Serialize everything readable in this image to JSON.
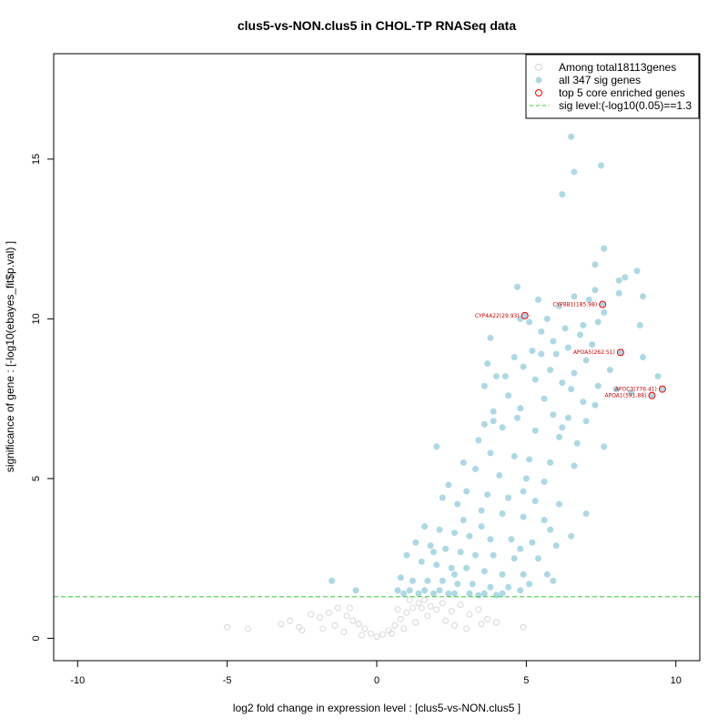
{
  "chart_data": {
    "type": "scatter",
    "title": "clus5-vs-NON.clus5 in CHOL-TP RNASeq data",
    "xlabel": "log2 fold change in expression level : [clus5-vs-NON.clus5 ]",
    "ylabel": "significance of gene : [-log10(ebayes_fit$p.val) ]",
    "xlim": [
      -10.8,
      10.8
    ],
    "ylim": [
      -0.7,
      18.3
    ],
    "xticks": [
      -10,
      -5,
      0,
      5,
      10
    ],
    "yticks": [
      0,
      5,
      10,
      15
    ],
    "sig_level": 1.3,
    "colors": {
      "total": "#d3d3d3",
      "sig": "#add8e6",
      "top": "#ff0000",
      "line": "#33cc33",
      "gene_label": "#cc0000"
    },
    "legend": {
      "position": "top-right",
      "entries": [
        "Among total18113genes",
        "all 347 sig genes",
        "top 5 core enriched genes",
        "sig level:(-log10(0.05)==1.3"
      ]
    },
    "series": [
      {
        "name": "all 347 sig genes",
        "points": [
          [
            6.5,
            15.7
          ],
          [
            7.5,
            14.8
          ],
          [
            6.6,
            14.6
          ],
          [
            6.2,
            13.9
          ],
          [
            7.6,
            12.2
          ],
          [
            7.3,
            11.7
          ],
          [
            8.7,
            11.5
          ],
          [
            8.3,
            11.3
          ],
          [
            8.1,
            11.2
          ],
          [
            4.7,
            11.0
          ],
          [
            7.3,
            10.9
          ],
          [
            8.1,
            10.8
          ],
          [
            5.4,
            10.6
          ],
          [
            6.6,
            10.7
          ],
          [
            7.1,
            10.6
          ],
          [
            8.9,
            10.7
          ],
          [
            6.1,
            10.4
          ],
          [
            7.6,
            10.2
          ],
          [
            5.7,
            10.0
          ],
          [
            8.8,
            9.8
          ],
          [
            7.4,
            9.9
          ],
          [
            6.9,
            9.8
          ],
          [
            6.3,
            9.7
          ],
          [
            5.1,
            9.9
          ],
          [
            4.8,
            10.0
          ],
          [
            5.5,
            9.6
          ],
          [
            6.8,
            9.5
          ],
          [
            3.8,
            9.4
          ],
          [
            5.9,
            9.3
          ],
          [
            7.2,
            9.2
          ],
          [
            6.4,
            9.1
          ],
          [
            5.2,
            9.0
          ],
          [
            4.6,
            8.8
          ],
          [
            6.0,
            8.9
          ],
          [
            7.0,
            8.7
          ],
          [
            8.9,
            8.8
          ],
          [
            3.7,
            8.6
          ],
          [
            4.9,
            8.5
          ],
          [
            5.8,
            8.4
          ],
          [
            6.6,
            8.3
          ],
          [
            7.8,
            8.4
          ],
          [
            9.4,
            8.2
          ],
          [
            4.0,
            8.2
          ],
          [
            5.3,
            8.1
          ],
          [
            6.2,
            8.0
          ],
          [
            7.4,
            7.9
          ],
          [
            8.5,
            7.7
          ],
          [
            3.6,
            7.9
          ],
          [
            4.4,
            7.6
          ],
          [
            5.6,
            7.5
          ],
          [
            6.9,
            7.4
          ],
          [
            7.3,
            7.3
          ],
          [
            8.0,
            7.8
          ],
          [
            4.8,
            7.2
          ],
          [
            5.9,
            7.0
          ],
          [
            6.4,
            6.9
          ],
          [
            7.0,
            6.8
          ],
          [
            3.9,
            6.8
          ],
          [
            4.2,
            6.6
          ],
          [
            5.3,
            6.5
          ],
          [
            6.1,
            6.3
          ],
          [
            6.7,
            6.1
          ],
          [
            7.6,
            6.0
          ],
          [
            3.4,
            6.2
          ],
          [
            2.0,
            6.0
          ],
          [
            3.8,
            5.8
          ],
          [
            4.6,
            5.7
          ],
          [
            5.1,
            5.6
          ],
          [
            5.8,
            5.5
          ],
          [
            6.6,
            5.4
          ],
          [
            2.9,
            5.5
          ],
          [
            3.3,
            5.3
          ],
          [
            4.1,
            5.1
          ],
          [
            5.0,
            5.0
          ],
          [
            5.6,
            4.9
          ],
          [
            2.4,
            4.8
          ],
          [
            3.0,
            4.6
          ],
          [
            3.7,
            4.5
          ],
          [
            4.4,
            4.4
          ],
          [
            5.3,
            4.3
          ],
          [
            6.1,
            4.2
          ],
          [
            2.2,
            4.4
          ],
          [
            2.7,
            4.2
          ],
          [
            3.5,
            4.0
          ],
          [
            4.2,
            3.9
          ],
          [
            4.9,
            3.8
          ],
          [
            5.6,
            3.7
          ],
          [
            7.0,
            3.9
          ],
          [
            1.6,
            3.5
          ],
          [
            2.1,
            3.4
          ],
          [
            2.6,
            3.3
          ],
          [
            3.1,
            3.2
          ],
          [
            3.8,
            3.1
          ],
          [
            4.5,
            3.1
          ],
          [
            5.2,
            3.0
          ],
          [
            6.0,
            2.9
          ],
          [
            6.5,
            3.2
          ],
          [
            1.3,
            3.0
          ],
          [
            1.8,
            2.9
          ],
          [
            2.3,
            2.8
          ],
          [
            2.8,
            2.7
          ],
          [
            3.3,
            2.6
          ],
          [
            3.9,
            2.6
          ],
          [
            4.6,
            2.5
          ],
          [
            5.4,
            2.5
          ],
          [
            1.0,
            2.6
          ],
          [
            1.5,
            2.4
          ],
          [
            2.0,
            2.3
          ],
          [
            2.5,
            2.2
          ],
          [
            3.0,
            2.2
          ],
          [
            3.6,
            2.1
          ],
          [
            4.2,
            2.0
          ],
          [
            4.9,
            2.0
          ],
          [
            5.7,
            2.0
          ],
          [
            0.8,
            1.9
          ],
          [
            1.2,
            1.8
          ],
          [
            1.7,
            1.8
          ],
          [
            2.2,
            1.8
          ],
          [
            2.7,
            1.7
          ],
          [
            3.2,
            1.7
          ],
          [
            3.8,
            1.6
          ],
          [
            4.4,
            1.6
          ],
          [
            5.1,
            1.7
          ],
          [
            5.9,
            1.8
          ],
          [
            0.7,
            1.5
          ],
          [
            1.1,
            1.5
          ],
          [
            1.6,
            1.5
          ],
          [
            2.1,
            1.5
          ],
          [
            2.6,
            1.4
          ],
          [
            3.1,
            1.4
          ],
          [
            3.6,
            1.4
          ],
          [
            4.2,
            1.4
          ],
          [
            4.8,
            1.5
          ],
          [
            0.9,
            1.4
          ],
          [
            1.4,
            1.4
          ],
          [
            1.9,
            1.4
          ],
          [
            2.4,
            1.4
          ],
          [
            3.4,
            1.35
          ],
          [
            4.0,
            1.35
          ],
          [
            -1.5,
            1.8
          ],
          [
            -0.7,
            1.5
          ],
          [
            3.9,
            7.1
          ],
          [
            4.7,
            6.9
          ],
          [
            6.5,
            7.8
          ],
          [
            6.2,
            6.6
          ],
          [
            5.5,
            8.9
          ],
          [
            4.3,
            8.2
          ],
          [
            3.6,
            6.7
          ],
          [
            4.9,
            4.6
          ],
          [
            5.8,
            3.4
          ],
          [
            2.9,
            3.7
          ],
          [
            1.9,
            2.7
          ],
          [
            2.6,
            2.0
          ],
          [
            3.5,
            3.5
          ],
          [
            4.8,
            2.8
          ]
        ]
      },
      {
        "name": "Among total18113genes",
        "points": [
          [
            -5.0,
            0.35
          ],
          [
            -4.3,
            0.3
          ],
          [
            -3.2,
            0.45
          ],
          [
            -2.9,
            0.55
          ],
          [
            -2.5,
            0.25
          ],
          [
            -2.2,
            0.75
          ],
          [
            -1.9,
            0.65
          ],
          [
            -1.6,
            0.8
          ],
          [
            -1.3,
            0.95
          ],
          [
            -1.0,
            0.7
          ],
          [
            -0.8,
            0.55
          ],
          [
            -0.6,
            0.45
          ],
          [
            -0.4,
            0.3
          ],
          [
            -0.2,
            0.15
          ],
          [
            0.0,
            0.05
          ],
          [
            0.2,
            0.12
          ],
          [
            0.4,
            0.25
          ],
          [
            0.6,
            0.4
          ],
          [
            0.8,
            0.6
          ],
          [
            1.0,
            0.8
          ],
          [
            1.2,
            0.95
          ],
          [
            1.4,
            1.1
          ],
          [
            1.6,
            1.2
          ],
          [
            1.8,
            1.0
          ],
          [
            2.0,
            0.9
          ],
          [
            2.2,
            1.1
          ],
          [
            2.5,
            0.85
          ],
          [
            2.8,
            1.05
          ],
          [
            3.1,
            0.75
          ],
          [
            3.4,
            0.9
          ],
          [
            3.7,
            0.6
          ],
          [
            4.0,
            0.5
          ],
          [
            4.9,
            0.35
          ],
          [
            -1.8,
            0.3
          ],
          [
            -1.4,
            0.4
          ],
          [
            -1.1,
            0.2
          ],
          [
            -0.5,
            0.1
          ],
          [
            0.5,
            0.15
          ],
          [
            0.9,
            0.3
          ],
          [
            1.3,
            0.5
          ],
          [
            1.7,
            0.7
          ],
          [
            2.3,
            0.55
          ],
          [
            2.6,
            0.4
          ],
          [
            3.0,
            0.3
          ],
          [
            1.5,
            0.95
          ],
          [
            1.1,
            1.2
          ],
          [
            0.7,
            0.9
          ],
          [
            -0.9,
            0.95
          ],
          [
            -2.6,
            0.35
          ],
          [
            3.5,
            0.45
          ]
        ]
      },
      {
        "name": "top 5 core enriched genes",
        "points": [
          [
            7.55,
            10.45
          ],
          [
            4.95,
            10.1
          ],
          [
            8.15,
            8.95
          ],
          [
            9.55,
            7.8
          ],
          [
            9.2,
            7.6
          ]
        ]
      }
    ],
    "annotations": [
      {
        "label": "CYP8B1(185.98)",
        "x": 7.55,
        "y": 10.45
      },
      {
        "label": "CYP4A22(29.93)",
        "x": 4.95,
        "y": 10.1
      },
      {
        "label": "APOA5(262.51)",
        "x": 8.15,
        "y": 8.95
      },
      {
        "label": "APOC3(776.41)",
        "x": 9.55,
        "y": 7.8
      },
      {
        "label": "APOA1(591.88)",
        "x": 9.2,
        "y": 7.6
      }
    ]
  }
}
